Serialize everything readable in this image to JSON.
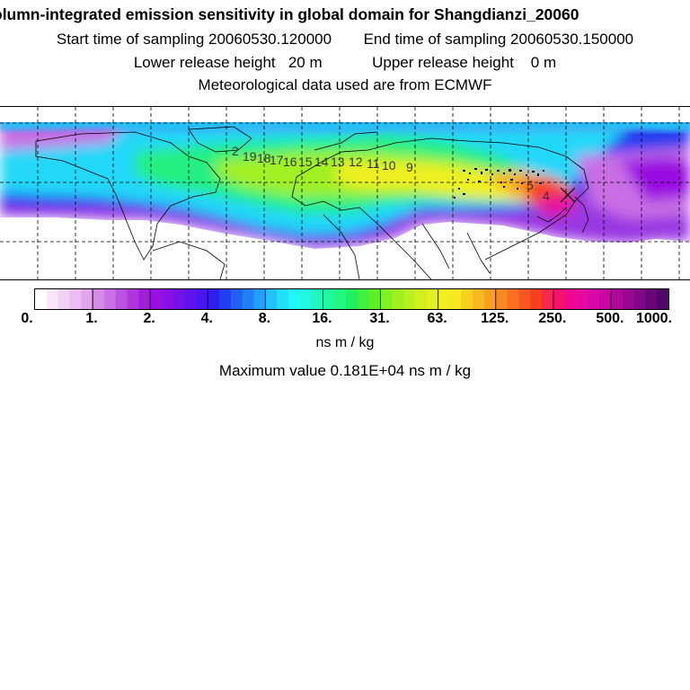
{
  "header": {
    "title": "olumn-integrated emission sensitivity in global domain for Shangdianzi_20060",
    "start_label": "Start time of sampling 20060530.120000",
    "end_label": "End time of sampling 20060530.150000",
    "lower_label": "Lower release height   20 m",
    "upper_label": "Upper release height    0 m",
    "met_label": "Meteorological data used are from ECMWF"
  },
  "map": {
    "trajectory_labels": [
      "2",
      "19",
      "18",
      "17",
      "16",
      "15",
      "14",
      "13",
      "12",
      "11",
      "10",
      "9",
      "5",
      "4"
    ],
    "receptor_marker": "x-cross"
  },
  "colorbar": {
    "tick_labels": [
      "0.",
      "1.",
      "2.",
      "4.",
      "8.",
      "16.",
      "31.",
      "63.",
      "125.",
      "250.",
      "500.",
      "1000."
    ],
    "colors": [
      "#ffffff",
      "#f8e6f8",
      "#f2d2f4",
      "#ecbef0",
      "#e2a6ee",
      "#d58ae8",
      "#c96ee4",
      "#bc52e0",
      "#ae36dc",
      "#a01ed8",
      "#9a10e2",
      "#8a10e8",
      "#7412ea",
      "#5e14ec",
      "#4816ee",
      "#3020f0",
      "#2040f0",
      "#2060f4",
      "#2080f8",
      "#20a0f8",
      "#20c0f8",
      "#20e0f8",
      "#20f8f8",
      "#20f8e0",
      "#20f8c0",
      "#20f8a0",
      "#20f880",
      "#20f060",
      "#40f040",
      "#60f020",
      "#80f020",
      "#a0f020",
      "#b8f020",
      "#d0f020",
      "#e0f020",
      "#f0f020",
      "#f8e820",
      "#f8d020",
      "#f8b820",
      "#f8a020",
      "#f88820",
      "#f87020",
      "#f85820",
      "#f84020",
      "#f82850",
      "#f81070",
      "#f00890",
      "#e808a0",
      "#d808a8",
      "#c808a0",
      "#b00898",
      "#980890",
      "#800888",
      "#680878",
      "#500868"
    ],
    "units": "ns m / kg"
  },
  "footer": {
    "max_value": "Maximum value  0.181E+04 ns m / kg"
  }
}
